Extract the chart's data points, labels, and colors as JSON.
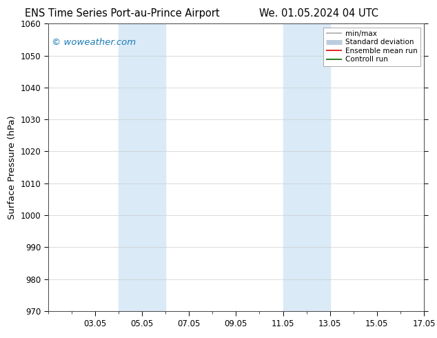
{
  "title_left": "ENS Time Series Port-au-Prince Airport",
  "title_right": "We. 01.05.2024 04 UTC",
  "ylabel": "Surface Pressure (hPa)",
  "ylim": [
    970,
    1060
  ],
  "yticks": [
    970,
    980,
    990,
    1000,
    1010,
    1020,
    1030,
    1040,
    1050,
    1060
  ],
  "xlim": [
    1.0,
    17.0
  ],
  "xtick_labels": [
    "03.05",
    "05.05",
    "07.05",
    "09.05",
    "11.05",
    "13.05",
    "15.05",
    "17.05"
  ],
  "xtick_positions": [
    3,
    5,
    7,
    9,
    11,
    13,
    15,
    17
  ],
  "shaded_bands": [
    {
      "x_start": 4.0,
      "x_end": 6.0,
      "color": "#daeaf7"
    },
    {
      "x_start": 11.0,
      "x_end": 13.0,
      "color": "#daeaf7"
    }
  ],
  "watermark_text": "© woweather.com",
  "watermark_color": "#1a7ab5",
  "legend_entries": [
    {
      "label": "min/max",
      "color": "#aaaaaa",
      "lw": 1.2
    },
    {
      "label": "Standard deviation",
      "color": "#bbccdd",
      "lw": 5
    },
    {
      "label": "Ensemble mean run",
      "color": "#dd0000",
      "lw": 1.2
    },
    {
      "label": "Controll run",
      "color": "#006600",
      "lw": 1.2
    }
  ],
  "bg_color": "#ffffff",
  "grid_color": "#cccccc",
  "tick_fontsize": 8.5,
  "label_fontsize": 9.5,
  "title_fontsize": 10.5
}
